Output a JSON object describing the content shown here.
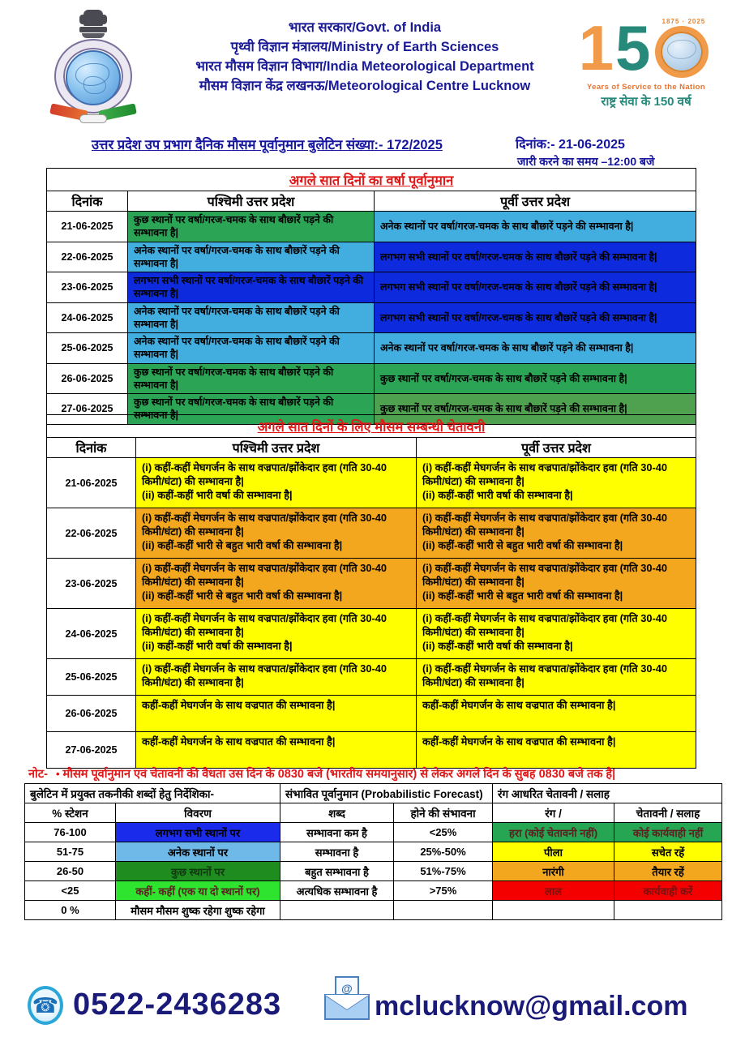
{
  "header": {
    "lines": [
      "भारत सरकार/Govt. of India",
      "पृथ्वी विज्ञान मंत्रालय/Ministry of Earth Sciences",
      "भारत मौसम विज्ञान विभाग/India Meteorological Department",
      "मौसम विज्ञान केंद्र लखनऊ/Meteorological Centre Lucknow"
    ],
    "logo150": {
      "digit1": "1",
      "digit5": "5",
      "arc_years": "1875  ·  2025",
      "line_en": "Years of Service to the Nation",
      "line_hi": "राष्ट्र सेवा के 150 वर्ष"
    }
  },
  "bulletin": {
    "title": "उत्तर प्रदेश उप प्रभाग दैनिक मौसम पूर्वानुमान बुलेटिन संख्या:- 172/2025",
    "date": "दिनांक:- 21-06-2025",
    "issue_time": "जारी करने का समय –12:00 बजे"
  },
  "forecast_table": {
    "title": "अगले सात दिनों का वर्षा पूर्वानुमान",
    "headers": [
      "दिनांक",
      "पश्चिमी उत्तर प्रदेश",
      "पूर्वी उत्तर प्रदेश"
    ],
    "rows": [
      {
        "date": "21-06-2025",
        "west": "कुछ स्थानों पर वर्षा/गरज-चमक के साथ बौछारें पड़ने की सम्भावना है|",
        "west_bg": "#2BA455",
        "east": "अनेक स्थानों पर वर्षा/गरज-चमक के साथ बौछारें पड़ने की सम्भावना है|",
        "east_bg": "#42AEE0"
      },
      {
        "date": "22-06-2025",
        "west": "अनेक स्थानों पर वर्षा/गरज-चमक के साथ बौछारें पड़ने की सम्भावना है|",
        "west_bg": "#42AEE0",
        "east": "लगभग सभी स्थानों पर वर्षा/गरज-चमक के साथ बौछारें पड़ने की सम्भावना है|",
        "east_bg": "#0D2BDC"
      },
      {
        "date": "23-06-2025",
        "west": "लगभग सभी स्थानों पर वर्षा/गरज-चमक के साथ बौछारें पड़ने की सम्भावना है|",
        "west_bg": "#0D2BDC",
        "east": "लगभग सभी स्थानों पर वर्षा/गरज-चमक के साथ बौछारें पड़ने की सम्भावना है|",
        "east_bg": "#0D2BDC"
      },
      {
        "date": "24-06-2025",
        "west": "अनेक स्थानों पर वर्षा/गरज-चमक के साथ बौछारें पड़ने की सम्भावना है|",
        "west_bg": "#42AEE0",
        "east": "लगभग सभी स्थानों पर वर्षा/गरज-चमक के साथ बौछारें पड़ने की सम्भावना है|",
        "east_bg": "#0D2BDC"
      },
      {
        "date": "25-06-2025",
        "west": "अनेक स्थानों पर वर्षा/गरज-चमक के साथ बौछारें पड़ने की सम्भावना है|",
        "west_bg": "#42AEE0",
        "east": "अनेक स्थानों पर वर्षा/गरज-चमक के साथ बौछारें पड़ने की सम्भावना है|",
        "east_bg": "#42AEE0"
      },
      {
        "date": "26-06-2025",
        "west": "कुछ स्थानों पर वर्षा/गरज-चमक के साथ बौछारें पड़ने की सम्भावना है|",
        "west_bg": "#2BA455",
        "east": "कुछ स्थानों पर वर्षा/गरज-चमक के साथ बौछारें पड़ने की सम्भावना है|",
        "east_bg": "#2BA455"
      },
      {
        "date": "27-06-2025",
        "west": "कुछ स्थानों पर वर्षा/गरज-चमक के साथ बौछारें पड़ने की सम्भावना है|",
        "west_bg": "#2BA455",
        "east": "कुछ स्थानों पर वर्षा/गरज-चमक के साथ बौछारें पड़ने की सम्भावना है|",
        "east_bg": "#4FA04F"
      }
    ]
  },
  "warning_table": {
    "title": "अगले सात दिनों  के लिए मौसम सम्बन्धी चेतावनी",
    "headers": [
      "दिनांक",
      "पश्चिमी उत्तर प्रदेश",
      "पूर्वी उत्तर प्रदेश"
    ],
    "rows": [
      {
        "date": "21-06-2025",
        "bg": "#FFFF00",
        "west_lines": [
          "(i) कहीं-कहीं मेघगर्जन के साथ वज्रपात/झोंकेदार हवा (गति 30-40 किमी/घंटा) की सम्भावना है|",
          "(ii) कहीं-कहीं  भारी वर्षा की सम्भावना है|"
        ],
        "east_lines": [
          "(i) कहीं-कहीं मेघगर्जन के साथ वज्रपात/झोंकेदार हवा (गति 30-40 किमी/घंटा) की सम्भावना है|",
          "(ii) कहीं-कहीं भारी वर्षा की सम्भावना है|"
        ]
      },
      {
        "date": "22-06-2025",
        "bg": "#F2A71E",
        "west_lines": [
          "(i) कहीं-कहीं मेघगर्जन के साथ वज्रपात/झोंकेदार हवा (गति 30-40 किमी/घंटा) की सम्भावना है|",
          "(ii) कहीं-कहीं भारी से बहुत भारी वर्षा की सम्भावना है|"
        ],
        "east_lines": [
          "(i) कहीं-कहीं मेघगर्जन के साथ वज्रपात/झोंकेदार हवा (गति 30-40 किमी/घंटा) की सम्भावना है|",
          "(ii) कहीं-कहीं भारी से बहुत भारी वर्षा की सम्भावना है|"
        ]
      },
      {
        "date": "23-06-2025",
        "bg": "#F2A71E",
        "west_lines": [
          "(i) कहीं-कहीं मेघगर्जन के साथ वज्रपात/झोंकेदार हवा (गति 30-40 किमी/घंटा) की सम्भावना है|",
          "(ii) कहीं-कहीं भारी से बहुत भारी वर्षा की सम्भावना है|"
        ],
        "east_lines": [
          "(i) कहीं-कहीं मेघगर्जन के साथ वज्रपात/झोंकेदार हवा (गति 30-40 किमी/घंटा) की सम्भावना है|",
          "(ii) कहीं-कहीं भारी से बहुत भारी वर्षा की सम्भावना है|"
        ]
      },
      {
        "date": "24-06-2025",
        "bg": "#FFFF00",
        "west_lines": [
          "(i) कहीं-कहीं मेघगर्जन के साथ वज्रपात/झोंकेदार हवा (गति 30-40 किमी/घंटा) की सम्भावना है|",
          "(ii) कहीं-कहीं  भारी वर्षा की सम्भावना है|"
        ],
        "east_lines": [
          "(i) कहीं-कहीं मेघगर्जन के साथ वज्रपात/झोंकेदार हवा (गति 30-40 किमी/घंटा) की सम्भावना है|",
          "(ii) कहीं-कहीं  भारी वर्षा की सम्भावना है|"
        ]
      },
      {
        "date": "25-06-2025",
        "bg": "#FFFF00",
        "west_lines": [
          "(i) कहीं-कहीं मेघगर्जन के साथ वज्रपात/झोंकेदार हवा (गति 30-40 किमी/घंटा) की सम्भावना है|"
        ],
        "east_lines": [
          "(i) कहीं-कहीं मेघगर्जन के साथ वज्रपात/झोंकेदार हवा (गति 30-40 किमी/घंटा) की सम्भावना है|"
        ]
      },
      {
        "date": "26-06-2025",
        "bg": "#FFFF00",
        "west_lines": [
          "कहीं-कहीं मेघगर्जन के साथ वज्रपात की सम्भावना है|"
        ],
        "east_lines": [
          "कहीं-कहीं मेघगर्जन के साथ वज्रपात की सम्भावना है|"
        ]
      },
      {
        "date": "27-06-2025",
        "bg": "#FFFF00",
        "west_lines": [
          "कहीं-कहीं मेघगर्जन के साथ वज्रपात की सम्भावना है|"
        ],
        "east_lines": [
          "कहीं-कहीं मेघगर्जन के साथ वज्रपात की सम्भावना है|"
        ]
      }
    ]
  },
  "note": {
    "label": "नोट-",
    "bullet": "•",
    "text": "मौसम पूर्वानुमान एवं चेतावनी की वैधता उस दिन के 0830 बजे (भारतीय समयानुसार) से लेकर अगले दिन के सुबह 0830 बजे तक है|"
  },
  "legend_table": {
    "group_headers": [
      "बुलेटिन  में प्रयुक्त तकनीकी शब्दों हेतु निर्देशिका-",
      "संभावित पूर्वानुमान (Probabilistic Forecast)",
      "रंग आधरित चेतावनी / सलाह"
    ],
    "col_headers": [
      "% स्टेशन",
      "विवरण",
      "शब्द",
      "होने की संभावना",
      "रंग /",
      "चेतावनी / सलाह"
    ],
    "rows": [
      {
        "pct": "76-100",
        "desc": "लगभग सभी स्थानों पर",
        "desc_bg": "#1B2BEB",
        "desc_fg": "#000000",
        "word": "सम्भावना कम है",
        "prob": "<25%",
        "color_name": "हरा (कोई चेतावनी नहीं)",
        "advice": "कोई कार्यवाही नहीं",
        "color_bg": "#26A553",
        "color_fg": "#5C2020"
      },
      {
        "pct": "51-75",
        "desc": "अनेक स्थानों पर",
        "desc_bg": "#6FB9E9",
        "desc_fg": "#000000",
        "word": "सम्भावना है",
        "prob": "25%-50%",
        "color_name": "पीला",
        "advice": "सचेत रहें",
        "color_bg": "#FFFF00",
        "color_fg": "#000000"
      },
      {
        "pct": "26-50",
        "desc": "कुछ स्थानों पर",
        "desc_bg": "#1E8C1E",
        "desc_fg": "#103a10",
        "word": "बहुत सम्भावना है",
        "prob": "51%-75%",
        "color_name": "नारंगी",
        "advice": "तैयार रहें",
        "color_bg": "#F2A71E",
        "color_fg": "#000000"
      },
      {
        "pct": "<25",
        "desc": "कहीं- कहीं   (एक या दो स्थानों पर)",
        "desc_bg": "#2EE42E",
        "desc_fg": "#5C2020",
        "word": "अत्यधिक सम्भावना है",
        "prob": ">75%",
        "color_name": "लाल",
        "advice": "कार्यवाही करें",
        "color_bg": "#F40000",
        "color_fg": "#7A1010"
      },
      {
        "pct": "0 %",
        "desc": "मौसम मौसम शुष्क रहेगा शुष्क रहेगा",
        "desc_bg": "#FFFFFF",
        "desc_fg": "#000000",
        "word": "",
        "prob": "",
        "color_name": "",
        "advice": "",
        "color_bg": "#FFFFFF",
        "color_fg": "#000000"
      }
    ]
  },
  "footer": {
    "phone": "0522-2436283",
    "email": "mclucknow@gmail.com",
    "at_sign": "@",
    "phone_glyph": "☎"
  }
}
